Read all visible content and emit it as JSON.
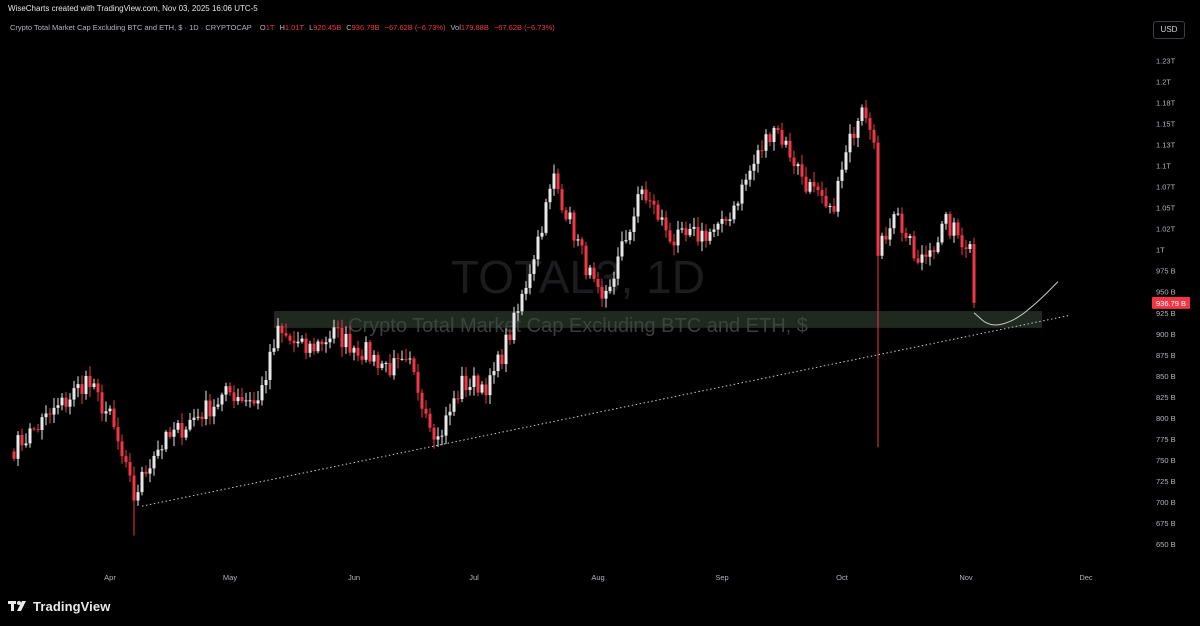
{
  "header": {
    "credit": "WiseCharts created with TradingView.com, Nov 03, 2025 16:06 UTC-5",
    "symbol_title": "Crypto Total Market Cap Excluding BTC and ETH, $ · 1D · CRYPTOCAP",
    "ohlc": [
      {
        "label": "O",
        "value": "1T"
      },
      {
        "label": "H",
        "value": "1.01T"
      },
      {
        "label": "L",
        "value": "920.45B"
      },
      {
        "label": "C",
        "value": "936.79B"
      },
      {
        "label": "",
        "value": "−67.62B (−6.73%)"
      },
      {
        "label": "Vol",
        "value": "179.88B"
      },
      {
        "label": "",
        "value": "−67.62B (−6.73%)"
      }
    ]
  },
  "currency_button": "USD",
  "watermark": {
    "symbol": "TOTAL3, 1D",
    "description": "Crypto Total Market Cap Excluding BTC and ETH, $"
  },
  "branding": "TradingView",
  "colors": {
    "background": "#000000",
    "up_candle": "#e8e8e8",
    "down_candle": "#f23645",
    "support_zone": "#3a4a3a",
    "trendline": "#c8c8c8",
    "axis_text": "#b2b5be",
    "price_tag": "#f23645"
  },
  "chart_data": {
    "type": "candlestick",
    "title": "Crypto Total Market Cap Excluding BTC and ETH, $",
    "timeframe": "1D",
    "x_tick_labels": [
      "Apr",
      "May",
      "Jun",
      "Jul",
      "Aug",
      "Sep",
      "Oct",
      "Nov",
      "Dec"
    ],
    "x_tick_dates": [
      "2025-04-01",
      "2025-05-01",
      "2025-06-01",
      "2025-07-01",
      "2025-08-01",
      "2025-09-01",
      "2025-10-01",
      "2025-11-01",
      "2025-12-01"
    ],
    "y_ticks": [
      {
        "label": "650 B",
        "value": 650
      },
      {
        "label": "675 B",
        "value": 675
      },
      {
        "label": "700 B",
        "value": 700
      },
      {
        "label": "725 B",
        "value": 725
      },
      {
        "label": "750 B",
        "value": 750
      },
      {
        "label": "775 B",
        "value": 775
      },
      {
        "label": "800 B",
        "value": 800
      },
      {
        "label": "825 B",
        "value": 825
      },
      {
        "label": "850 B",
        "value": 850
      },
      {
        "label": "875 B",
        "value": 875
      },
      {
        "label": "900 B",
        "value": 900
      },
      {
        "label": "925 B",
        "value": 925
      },
      {
        "label": "950 B",
        "value": 950
      },
      {
        "label": "975 B",
        "value": 975
      },
      {
        "label": "1T",
        "value": 1000
      },
      {
        "label": "1.02T",
        "value": 1025
      },
      {
        "label": "1.05T",
        "value": 1050
      },
      {
        "label": "1.07T",
        "value": 1075
      },
      {
        "label": "1.1T",
        "value": 1100
      },
      {
        "label": "1.13T",
        "value": 1125
      },
      {
        "label": "1.15T",
        "value": 1150
      },
      {
        "label": "1.18T",
        "value": 1175
      },
      {
        "label": "1.2T",
        "value": 1200
      },
      {
        "label": "1.23T",
        "value": 1225
      }
    ],
    "y_unit": "B USD",
    "ylim": [
      640,
      1240
    ],
    "start_date": "2025-03-07",
    "close_path": [
      {
        "date": "2025-03-07",
        "close": 760
      },
      {
        "date": "2025-03-14",
        "close": 790
      },
      {
        "date": "2025-03-21",
        "close": 820
      },
      {
        "date": "2025-03-26",
        "close": 845
      },
      {
        "date": "2025-04-01",
        "close": 800
      },
      {
        "date": "2025-04-07",
        "close": 705
      },
      {
        "date": "2025-04-12",
        "close": 760
      },
      {
        "date": "2025-04-22",
        "close": 800
      },
      {
        "date": "2025-05-01",
        "close": 830
      },
      {
        "date": "2025-05-08",
        "close": 820
      },
      {
        "date": "2025-05-13",
        "close": 900
      },
      {
        "date": "2025-05-20",
        "close": 880
      },
      {
        "date": "2025-05-27",
        "close": 900
      },
      {
        "date": "2025-06-03",
        "close": 880
      },
      {
        "date": "2025-06-10",
        "close": 860
      },
      {
        "date": "2025-06-15",
        "close": 860
      },
      {
        "date": "2025-06-22",
        "close": 775
      },
      {
        "date": "2025-06-28",
        "close": 840
      },
      {
        "date": "2025-07-05",
        "close": 840
      },
      {
        "date": "2025-07-12",
        "close": 925
      },
      {
        "date": "2025-07-21",
        "close": 1085
      },
      {
        "date": "2025-08-02",
        "close": 930
      },
      {
        "date": "2025-08-12",
        "close": 1070
      },
      {
        "date": "2025-08-20",
        "close": 1010
      },
      {
        "date": "2025-09-01",
        "close": 1025
      },
      {
        "date": "2025-09-14",
        "close": 1150
      },
      {
        "date": "2025-09-22",
        "close": 1080
      },
      {
        "date": "2025-09-28",
        "close": 1040
      },
      {
        "date": "2025-10-06",
        "close": 1180
      },
      {
        "date": "2025-10-09",
        "close": 1140
      },
      {
        "date": "2025-10-10",
        "close": 990
      },
      {
        "date": "2025-10-14",
        "close": 1050
      },
      {
        "date": "2025-10-20",
        "close": 980
      },
      {
        "date": "2025-10-27",
        "close": 1030
      },
      {
        "date": "2025-11-02",
        "close": 1004
      },
      {
        "date": "2025-11-03",
        "close": 936.79
      }
    ],
    "candle_interval": "1 day",
    "flash_crash_wick": {
      "date": "2025-10-10",
      "low": 765
    },
    "april_low_wick": {
      "date": "2025-04-07",
      "low": 660
    },
    "support_zone": {
      "date_from": "2025-05-12",
      "date_to": "2025-11-20",
      "low": 907,
      "high": 927
    },
    "trendline": {
      "from": {
        "date": "2025-04-09",
        "value": 695
      },
      "to": {
        "date": "2025-11-27",
        "value": 922
      }
    },
    "projection_curve": [
      {
        "date": "2025-11-03",
        "value": 925
      },
      {
        "date": "2025-11-07",
        "value": 908
      },
      {
        "date": "2025-11-13",
        "value": 915
      },
      {
        "date": "2025-11-19",
        "value": 938
      },
      {
        "date": "2025-11-24",
        "value": 962
      }
    ],
    "last_price": {
      "label": "936.79 B",
      "value": 936.79
    }
  }
}
